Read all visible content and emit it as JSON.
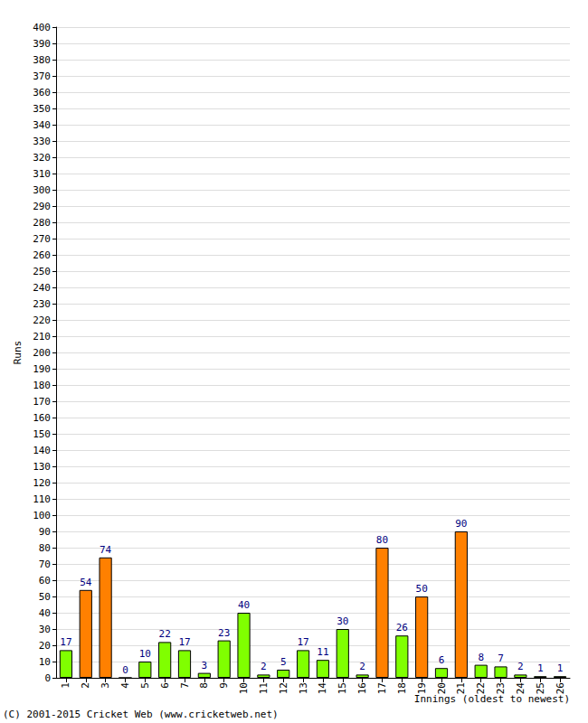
{
  "chart_data": {
    "type": "bar",
    "y_label": "Runs",
    "x_label": "Innings (oldest to newest)",
    "annotations": [
      "(C) 2001-2015 Cricket Web (www.cricketweb.net)"
    ],
    "categories": [
      "1",
      "2",
      "3",
      "4",
      "5",
      "6",
      "7",
      "8",
      "9",
      "10",
      "11",
      "12",
      "13",
      "14",
      "15",
      "16",
      "17",
      "18",
      "19",
      "20",
      "21",
      "22",
      "23",
      "24",
      "25",
      "26"
    ],
    "values": [
      17,
      54,
      74,
      0,
      10,
      22,
      17,
      3,
      23,
      40,
      2,
      5,
      17,
      11,
      30,
      2,
      80,
      26,
      50,
      6,
      90,
      8,
      7,
      2,
      1,
      1
    ],
    "colors": [
      "#80ff00",
      "#ff8000",
      "#ff8000",
      "#80ff00",
      "#80ff00",
      "#80ff00",
      "#80ff00",
      "#80ff00",
      "#80ff00",
      "#80ff00",
      "#80ff00",
      "#80ff00",
      "#80ff00",
      "#80ff00",
      "#80ff00",
      "#80ff00",
      "#ff8000",
      "#80ff00",
      "#ff8000",
      "#80ff00",
      "#ff8000",
      "#80ff00",
      "#80ff00",
      "#80ff00",
      "#80ff00",
      "#80ff00"
    ],
    "ylim": [
      0,
      400
    ],
    "yticks": [
      0,
      10,
      20,
      30,
      40,
      50,
      60,
      70,
      80,
      90,
      100,
      110,
      120,
      130,
      140,
      150,
      160,
      170,
      180,
      190,
      200,
      210,
      220,
      230,
      240,
      250,
      260,
      270,
      280,
      290,
      300,
      310,
      320,
      330,
      340,
      350,
      360,
      370,
      380,
      390,
      400
    ],
    "grid": true,
    "data_labels": true
  }
}
